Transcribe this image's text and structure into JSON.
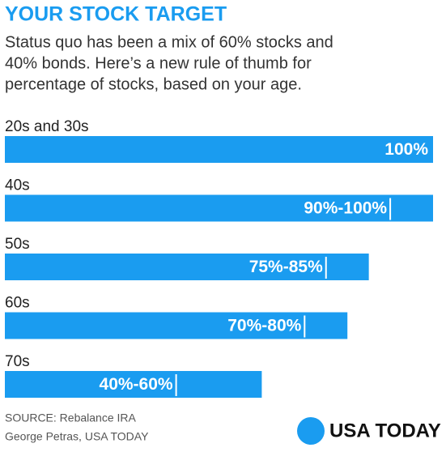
{
  "chart_data": {
    "type": "bar",
    "title": "YOUR STOCK TARGET",
    "subtitle": [
      "Status quo has been a mix of 60% stocks and",
      "40% bonds. Here’s a new rule of thumb for",
      "percentage of stocks, based on your age."
    ],
    "categories": [
      "20s and 30s",
      "40s",
      "50s",
      "60s",
      "70s"
    ],
    "values": [
      100,
      100,
      85,
      80,
      60
    ],
    "lows": [
      null,
      90,
      75,
      70,
      40
    ],
    "value_labels": [
      "100%",
      "90%-100%",
      "75%-85%",
      "70%-80%",
      "40%-60%"
    ],
    "color": "#1a9cf0",
    "xlim": [
      0,
      100
    ],
    "source": [
      "SOURCE:  Rebalance IRA",
      "George Petras, USA TODAY"
    ],
    "logo": "USA TODAY"
  }
}
